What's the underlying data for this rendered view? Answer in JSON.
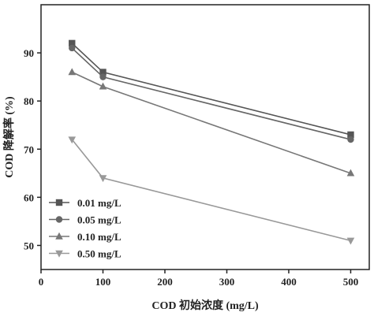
{
  "chart_data": {
    "type": "line",
    "xlabel": "COD 初始浓度 (mg/L)",
    "ylabel": "COD 降解率 (%)",
    "xlim": [
      0,
      530
    ],
    "ylim": [
      45,
      100
    ],
    "xticks": [
      0,
      100,
      200,
      300,
      400,
      500
    ],
    "yticks": [
      50,
      60,
      70,
      80,
      90
    ],
    "grid": false,
    "legend_position": "bottom-left",
    "series": [
      {
        "name": "0.01 mg/L",
        "marker": "square",
        "color": "#555555",
        "x": [
          50,
          100,
          500
        ],
        "y": [
          92,
          86,
          73
        ]
      },
      {
        "name": "0.05 mg/L",
        "marker": "circle",
        "color": "#666666",
        "x": [
          50,
          100,
          500
        ],
        "y": [
          91,
          85,
          72
        ]
      },
      {
        "name": "0.10 mg/L",
        "marker": "triangle-up",
        "color": "#777777",
        "x": [
          50,
          100,
          500
        ],
        "y": [
          86,
          83,
          65
        ]
      },
      {
        "name": "0.50 mg/L",
        "marker": "triangle-down",
        "color": "#999999",
        "x": [
          50,
          100,
          500
        ],
        "y": [
          72,
          64,
          51
        ]
      }
    ]
  }
}
